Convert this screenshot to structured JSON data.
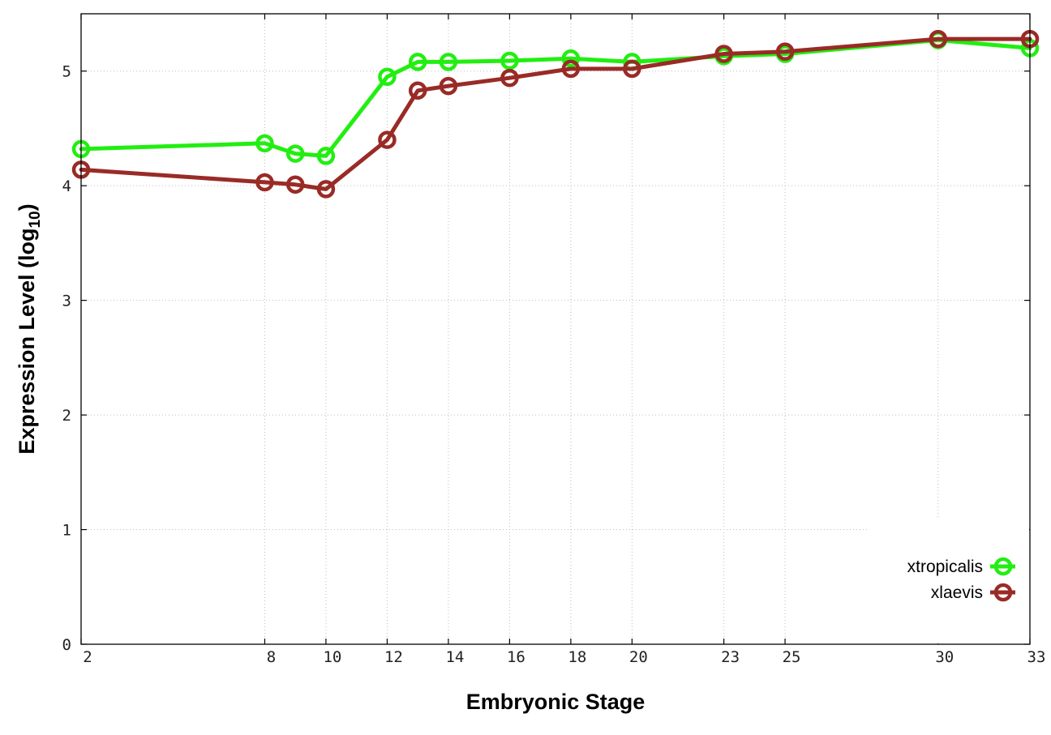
{
  "chart_data": {
    "type": "line",
    "title": "",
    "xlabel": "Embryonic Stage",
    "ylabel_main": "Expression Level (log",
    "ylabel_sub": "10",
    "ylabel_close": ")",
    "x": [
      2,
      8,
      9,
      10,
      12,
      13,
      14,
      16,
      18,
      20,
      23,
      25,
      30,
      33
    ],
    "xticks": [
      2,
      8,
      10,
      12,
      14,
      16,
      18,
      20,
      23,
      25,
      30,
      33
    ],
    "xtick_labels": [
      "2",
      "8",
      "10",
      "12",
      "14",
      "16",
      "18",
      "20",
      "23",
      "25",
      "30",
      "33"
    ],
    "yticks": [
      0,
      1,
      2,
      3,
      4,
      5
    ],
    "ytick_labels": [
      "0",
      "1",
      "2",
      "3",
      "4",
      "5"
    ],
    "xlim": [
      2,
      33
    ],
    "ylim": [
      0,
      5.5
    ],
    "grid": true,
    "legend_position": "bottom-right",
    "series": [
      {
        "name": "xtropicalis",
        "color": "#22ee11",
        "values": [
          4.32,
          4.37,
          4.28,
          4.26,
          4.95,
          5.08,
          5.08,
          5.09,
          5.11,
          5.08,
          5.13,
          5.15,
          5.27,
          5.2
        ]
      },
      {
        "name": "xlaevis",
        "color": "#992b26",
        "values": [
          4.14,
          4.03,
          4.01,
          3.97,
          4.4,
          4.83,
          4.87,
          4.94,
          5.02,
          5.02,
          5.15,
          5.17,
          5.28,
          5.28
        ]
      }
    ]
  }
}
